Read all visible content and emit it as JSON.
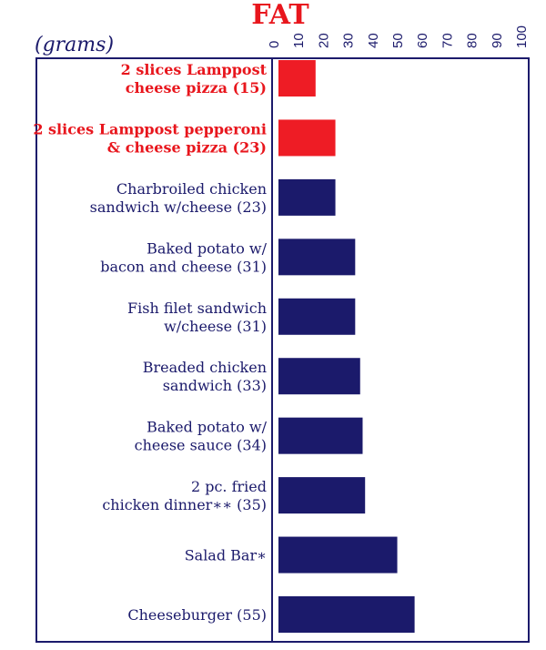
{
  "chart_data": {
    "type": "bar",
    "orientation": "horizontal",
    "title": "FAT",
    "unit_label": "(grams)",
    "xlim": [
      0,
      100
    ],
    "ticks": [
      0,
      10,
      20,
      30,
      40,
      50,
      60,
      70,
      80,
      90,
      100
    ],
    "categories": [
      {
        "lines": [
          "2 slices Lamppost",
          "cheese pizza (15)"
        ],
        "value": 15,
        "highlight": true
      },
      {
        "lines": [
          "2 slices Lamppost pepperoni",
          "& cheese pizza (23)"
        ],
        "value": 23,
        "highlight": true
      },
      {
        "lines": [
          "Charbroiled chicken",
          "sandwich w/cheese (23)"
        ],
        "value": 23,
        "highlight": false
      },
      {
        "lines": [
          "Baked potato w/",
          "bacon and cheese (31)"
        ],
        "value": 31,
        "highlight": false
      },
      {
        "lines": [
          "Fish filet sandwich",
          "w/cheese (31)"
        ],
        "value": 31,
        "highlight": false
      },
      {
        "lines": [
          "Breaded chicken",
          "sandwich (33)"
        ],
        "value": 33,
        "highlight": false
      },
      {
        "lines": [
          "Baked potato w/",
          "cheese sauce (34)"
        ],
        "value": 34,
        "highlight": false
      },
      {
        "lines": [
          "2 pc. fried",
          "chicken dinner∗∗ (35)"
        ],
        "value": 35,
        "highlight": false
      },
      {
        "lines": [
          "Salad Bar∗"
        ],
        "value": 48,
        "highlight": false
      },
      {
        "lines": [
          "Cheeseburger (55)"
        ],
        "value": 55,
        "highlight": false
      }
    ],
    "colors": {
      "highlight": "#ee1c25",
      "bar": "#1b1a6b",
      "text": "#1b1a6b",
      "highlight_text": "#e8161d",
      "title": "#e8161d"
    },
    "grid": false
  }
}
